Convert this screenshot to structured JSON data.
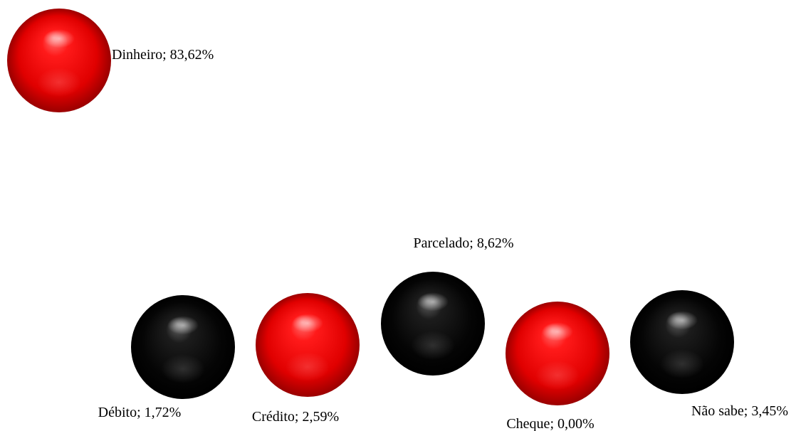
{
  "chart_data": {
    "type": "scatter",
    "style": "3d-spheres",
    "title": "",
    "xlabel": "",
    "ylabel": "",
    "grid": false,
    "legend": "none",
    "points": [
      {
        "category": "Dinheiro",
        "value": 83.62,
        "label": "Dinheiro; 83,62%",
        "color": "red"
      },
      {
        "category": "Débito",
        "value": 1.72,
        "label": "Débito; 1,72%",
        "color": "black"
      },
      {
        "category": "Crédito",
        "value": 2.59,
        "label": "Crédito; 2,59%",
        "color": "red"
      },
      {
        "category": "Parcelado",
        "value": 8.62,
        "label": "Parcelado; 8,62%",
        "color": "black"
      },
      {
        "category": "Cheque",
        "value": 0.0,
        "label": "Cheque; 0,00%",
        "color": "red"
      },
      {
        "category": "Não sabe",
        "value": 3.45,
        "label": "Não sabe; 3,45%",
        "color": "black"
      }
    ]
  },
  "colors": {
    "red": "#ff0000",
    "black": "#000000"
  }
}
